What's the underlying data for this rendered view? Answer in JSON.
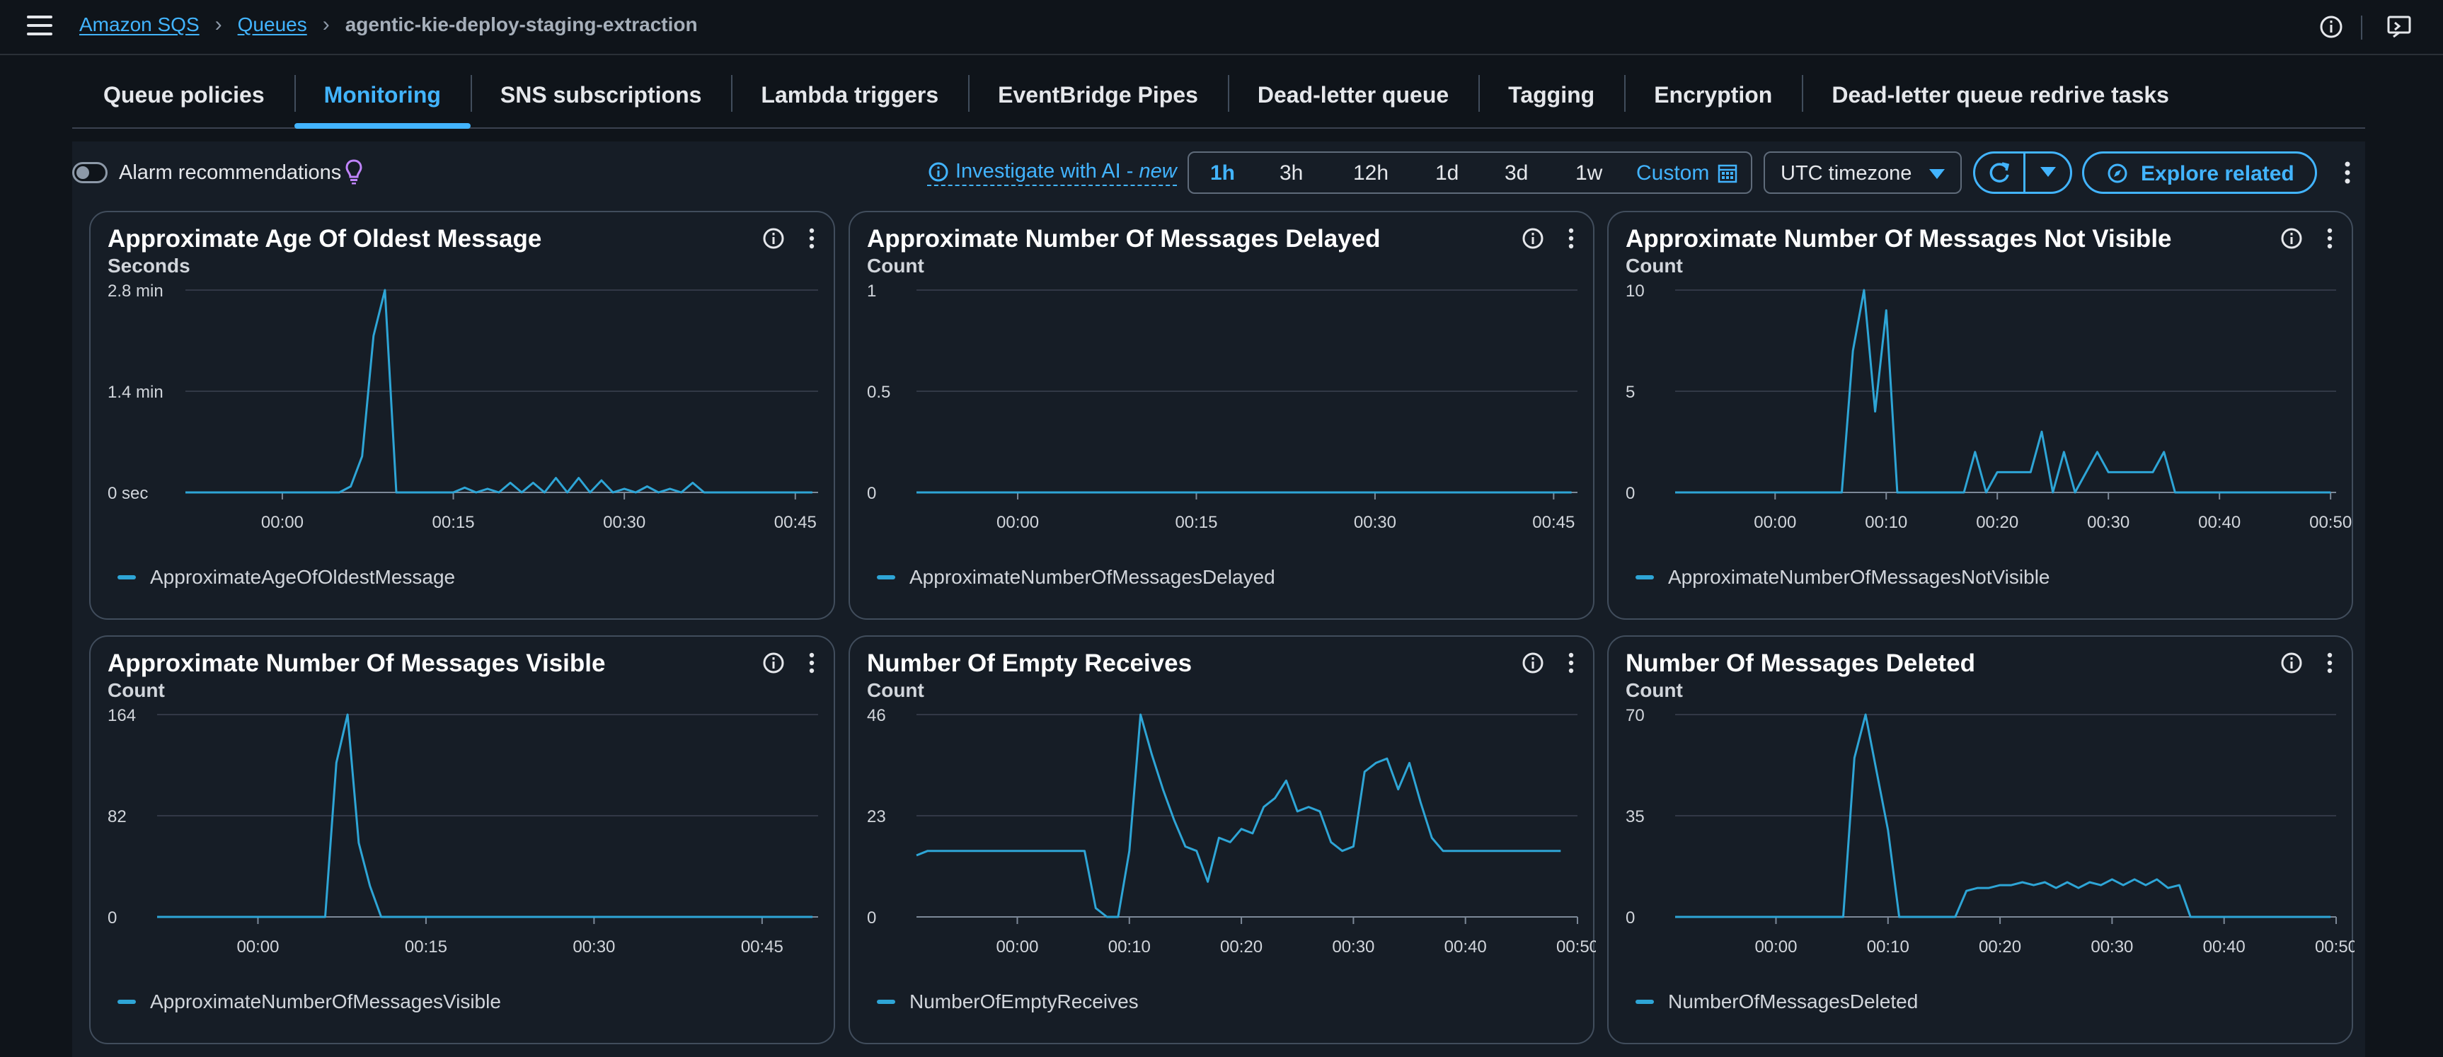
{
  "breadcrumb": {
    "items": [
      "Amazon SQS",
      "Queues"
    ],
    "current": "agentic-kie-deploy-staging-extraction"
  },
  "tabs": [
    {
      "label": "Queue policies",
      "active": false
    },
    {
      "label": "Monitoring",
      "active": true
    },
    {
      "label": "SNS subscriptions",
      "active": false
    },
    {
      "label": "Lambda triggers",
      "active": false
    },
    {
      "label": "EventBridge Pipes",
      "active": false
    },
    {
      "label": "Dead-letter queue",
      "active": false
    },
    {
      "label": "Tagging",
      "active": false
    },
    {
      "label": "Encryption",
      "active": false
    },
    {
      "label": "Dead-letter queue redrive tasks",
      "active": false
    }
  ],
  "controls": {
    "alarm_label": "Alarm recommendations",
    "investigate_label": "Investigate with AI -",
    "investigate_new": "new",
    "ranges": [
      "1h",
      "3h",
      "12h",
      "1d",
      "3d",
      "1w"
    ],
    "active_range": "1h",
    "custom_label": "Custom",
    "timezone": "UTC timezone",
    "explore_label": "Explore related"
  },
  "colors": {
    "accent": "#42b4ff",
    "series": "#2ea5d6",
    "grid": "#3b4250",
    "bg": "#0f141a"
  },
  "widgets": [
    {
      "title": "Approximate Age Of Oldest Message",
      "unit": "Seconds",
      "legend": "ApproximateAgeOfOldestMessage"
    },
    {
      "title": "Approximate Number Of Messages Delayed",
      "unit": "Count",
      "legend": "ApproximateNumberOfMessagesDelayed"
    },
    {
      "title": "Approximate Number Of Messages Not Visible",
      "unit": "Count",
      "legend": "ApproximateNumberOfMessagesNotVisible"
    },
    {
      "title": "Approximate Number Of Messages Visible",
      "unit": "Count",
      "legend": "ApproximateNumberOfMessagesVisible"
    },
    {
      "title": "Number Of Empty Receives",
      "unit": "Count",
      "legend": "NumberOfEmptyReceives"
    },
    {
      "title": "Number Of Messages Deleted",
      "unit": "Count",
      "legend": "NumberOfMessagesDeleted"
    }
  ],
  "chart_data": [
    {
      "type": "line",
      "title": "Approximate Age Of Oldest Message",
      "ylabel": "Seconds",
      "ylim": [
        0,
        168
      ],
      "y_ticks": [
        {
          "value": 0,
          "label": "0 sec"
        },
        {
          "value": 84,
          "label": "1.4 min"
        },
        {
          "value": 168,
          "label": "2.8 min"
        }
      ],
      "x_ticks": [
        {
          "value": 0,
          "label": "00:00"
        },
        {
          "value": 15,
          "label": "00:15"
        },
        {
          "value": 30,
          "label": "00:30"
        },
        {
          "value": 45,
          "label": "00:45"
        }
      ],
      "xlim": [
        -8.5,
        47
      ],
      "series": [
        {
          "name": "ApproximateAgeOfOldestMessage",
          "x": [
            -8.5,
            5,
            6,
            7,
            8,
            9,
            10,
            11,
            12,
            13,
            14,
            15,
            16,
            17,
            18,
            19,
            20,
            21,
            22,
            23,
            24,
            25,
            26,
            27,
            28,
            29,
            30,
            31,
            32,
            33,
            34,
            35,
            36,
            37,
            38,
            46.5
          ],
          "y": [
            0,
            0,
            5,
            30,
            130,
            168,
            0,
            0,
            0,
            0,
            0,
            0,
            4,
            0,
            3,
            0,
            8,
            0,
            8,
            0,
            12,
            0,
            12,
            0,
            10,
            0,
            3,
            0,
            5,
            0,
            3,
            0,
            8,
            0,
            0,
            0
          ]
        }
      ]
    },
    {
      "type": "line",
      "title": "Approximate Number Of Messages Delayed",
      "ylabel": "Count",
      "ylim": [
        0,
        1
      ],
      "y_ticks": [
        {
          "value": 0,
          "label": "0"
        },
        {
          "value": 0.5,
          "label": "0.5"
        },
        {
          "value": 1,
          "label": "1"
        }
      ],
      "x_ticks": [
        {
          "value": 0,
          "label": "00:00"
        },
        {
          "value": 15,
          "label": "00:15"
        },
        {
          "value": 30,
          "label": "00:30"
        },
        {
          "value": 45,
          "label": "00:45"
        }
      ],
      "xlim": [
        -8.5,
        47
      ],
      "series": [
        {
          "name": "ApproximateNumberOfMessagesDelayed",
          "x": [
            -8.5,
            46.5
          ],
          "y": [
            0,
            0
          ]
        }
      ]
    },
    {
      "type": "line",
      "title": "Approximate Number Of Messages Not Visible",
      "ylabel": "Count",
      "ylim": [
        0,
        10
      ],
      "y_ticks": [
        {
          "value": 0,
          "label": "0"
        },
        {
          "value": 5,
          "label": "5"
        },
        {
          "value": 10,
          "label": "10"
        }
      ],
      "x_ticks": [
        {
          "value": 0,
          "label": "00:00"
        },
        {
          "value": 10,
          "label": "00:10"
        },
        {
          "value": 20,
          "label": "00:20"
        },
        {
          "value": 30,
          "label": "00:30"
        },
        {
          "value": 40,
          "label": "00:40"
        },
        {
          "value": 50,
          "label": "00:50"
        }
      ],
      "xlim": [
        -9,
        50.5
      ],
      "series": [
        {
          "name": "ApproximateNumberOfMessagesNotVisible",
          "x": [
            -9,
            6,
            7,
            8,
            9,
            10,
            11,
            16,
            17,
            18,
            19,
            20,
            21,
            22,
            23,
            24,
            25,
            26,
            27,
            28,
            29,
            30,
            31,
            32,
            33,
            34,
            35,
            36,
            43,
            50
          ],
          "y": [
            0,
            0,
            7,
            10,
            4,
            9,
            0,
            0,
            0,
            2,
            0,
            1,
            1,
            1,
            1,
            3,
            0,
            2,
            0,
            1,
            2,
            1,
            1,
            1,
            1,
            1,
            2,
            0,
            0,
            0
          ]
        }
      ]
    },
    {
      "type": "line",
      "title": "Approximate Number Of Messages Visible",
      "ylabel": "Count",
      "ylim": [
        0,
        164
      ],
      "y_ticks": [
        {
          "value": 0,
          "label": "0"
        },
        {
          "value": 82,
          "label": "82"
        },
        {
          "value": 164,
          "label": "164"
        }
      ],
      "x_ticks": [
        {
          "value": 0,
          "label": "00:00"
        },
        {
          "value": 15,
          "label": "00:15"
        },
        {
          "value": 30,
          "label": "00:30"
        },
        {
          "value": 45,
          "label": "00:45"
        }
      ],
      "xlim": [
        -9,
        50
      ],
      "series": [
        {
          "name": "ApproximateNumberOfMessagesVisible",
          "x": [
            -9,
            6,
            7,
            8,
            9,
            10,
            11,
            12,
            13,
            49.5
          ],
          "y": [
            0,
            0,
            125,
            164,
            60,
            25,
            0,
            0,
            0,
            0
          ]
        }
      ]
    },
    {
      "type": "line",
      "title": "Number Of Empty Receives",
      "ylabel": "Count",
      "ylim": [
        0,
        46
      ],
      "y_ticks": [
        {
          "value": 0,
          "label": "0"
        },
        {
          "value": 23,
          "label": "23"
        },
        {
          "value": 46,
          "label": "46"
        }
      ],
      "x_ticks": [
        {
          "value": 0,
          "label": "00:00"
        },
        {
          "value": 10,
          "label": "00:10"
        },
        {
          "value": 20,
          "label": "00:20"
        },
        {
          "value": 30,
          "label": "00:30"
        },
        {
          "value": 40,
          "label": "00:40"
        },
        {
          "value": 50,
          "label": "00:50"
        }
      ],
      "xlim": [
        -9,
        50
      ],
      "series": [
        {
          "name": "NumberOfEmptyReceives",
          "x": [
            -9,
            -8,
            6,
            7,
            8,
            9,
            10,
            11,
            12,
            13,
            14,
            15,
            16,
            17,
            18,
            19,
            20,
            21,
            22,
            23,
            24,
            25,
            26,
            27,
            28,
            29,
            30,
            31,
            32,
            33,
            34,
            35,
            36,
            37,
            38,
            48.5
          ],
          "y": [
            14,
            15,
            15,
            2,
            0,
            0,
            15,
            46,
            37,
            29,
            22,
            16,
            15,
            8,
            18,
            17,
            20,
            19,
            25,
            27,
            31,
            24,
            25,
            24,
            17,
            15,
            16,
            33,
            35,
            36,
            29,
            35,
            26,
            18,
            15,
            15
          ]
        }
      ]
    },
    {
      "type": "line",
      "title": "Number Of Messages Deleted",
      "ylabel": "Count",
      "ylim": [
        0,
        70
      ],
      "y_ticks": [
        {
          "value": 0,
          "label": "0"
        },
        {
          "value": 35,
          "label": "35"
        },
        {
          "value": 70,
          "label": "70"
        }
      ],
      "x_ticks": [
        {
          "value": 0,
          "label": "00:00"
        },
        {
          "value": 10,
          "label": "00:10"
        },
        {
          "value": 20,
          "label": "00:20"
        },
        {
          "value": 30,
          "label": "00:30"
        },
        {
          "value": 40,
          "label": "00:40"
        },
        {
          "value": 50,
          "label": "00:50"
        }
      ],
      "xlim": [
        -9,
        50
      ],
      "series": [
        {
          "name": "NumberOfMessagesDeleted",
          "x": [
            -9,
            6,
            7,
            8,
            9,
            10,
            11,
            12,
            13,
            14,
            15,
            16,
            17,
            18,
            19,
            20,
            21,
            22,
            23,
            24,
            25,
            26,
            27,
            28,
            29,
            30,
            31,
            32,
            33,
            34,
            35,
            36,
            37,
            49.5
          ],
          "y": [
            0,
            0,
            55,
            70,
            50,
            30,
            0,
            0,
            0,
            0,
            0,
            0,
            9,
            10,
            10,
            11,
            11,
            12,
            11,
            12,
            10,
            12,
            10,
            12,
            11,
            13,
            11,
            13,
            11,
            13,
            10,
            11,
            0,
            0
          ]
        }
      ]
    }
  ]
}
